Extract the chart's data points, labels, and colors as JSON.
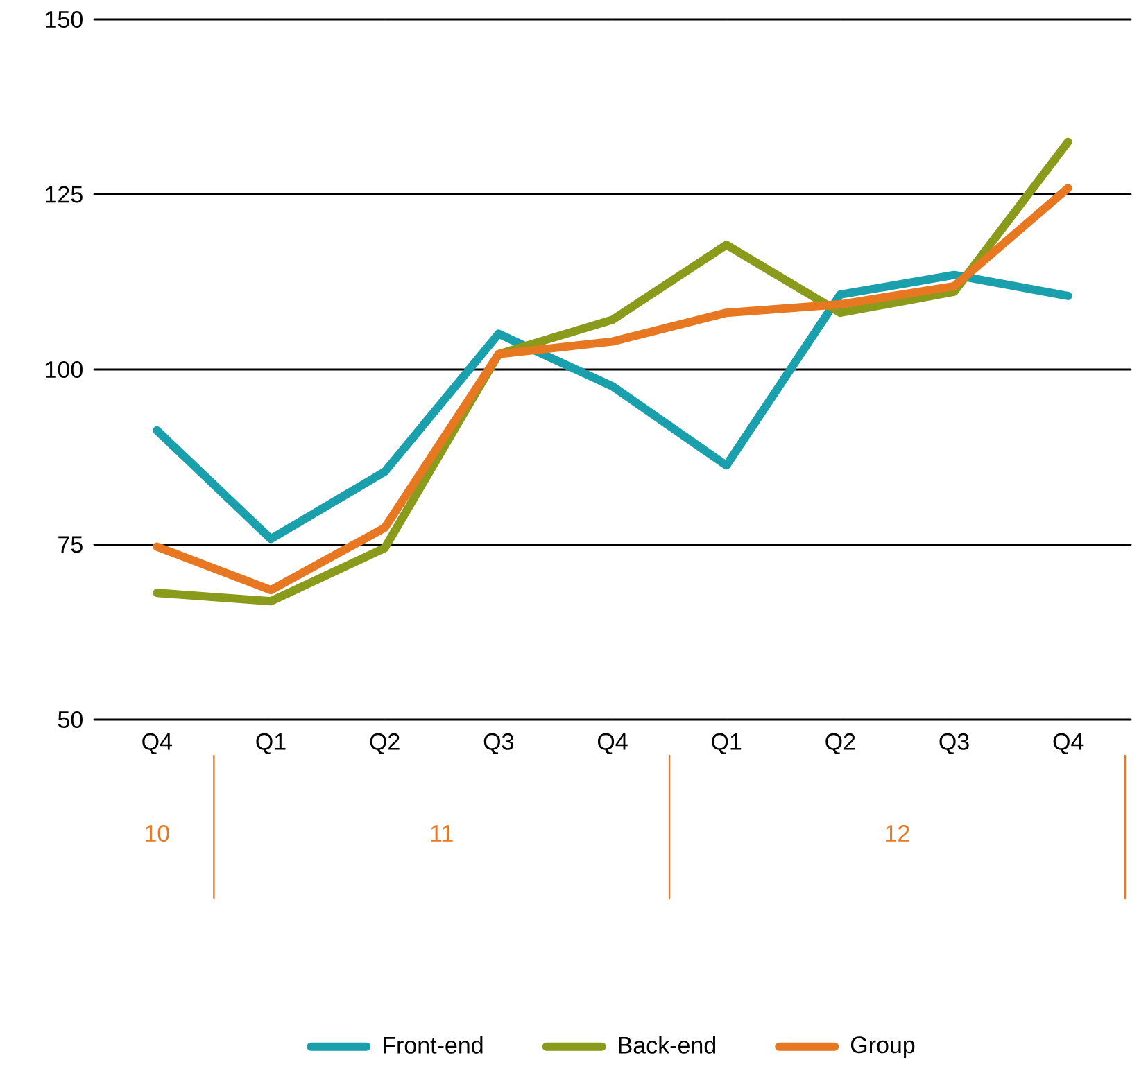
{
  "chart_data": {
    "type": "line",
    "categories": [
      "Q4",
      "Q1",
      "Q2",
      "Q3",
      "Q4",
      "Q1",
      "Q2",
      "Q3",
      "Q4"
    ],
    "series": [
      {
        "name": "Front-end",
        "color": "#1a9fad",
        "values": [
          91.3,
          75.8,
          85.4,
          105.1,
          97.6,
          86.3,
          110.7,
          113.5,
          110.5
        ]
      },
      {
        "name": "Back-end",
        "color": "#8a9a1b",
        "values": [
          68.1,
          66.9,
          74.5,
          102.2,
          107.1,
          117.8,
          108.1,
          111.1,
          132.5
        ]
      },
      {
        "name": "Group",
        "color": "#e87722",
        "values": [
          74.7,
          68.5,
          77.4,
          102.2,
          104.0,
          108.1,
          109.3,
          111.9,
          125.9
        ]
      }
    ],
    "ylim": [
      50,
      150
    ],
    "yticks": [
      50,
      75,
      100,
      125,
      150
    ],
    "grid": "y",
    "legend": "bottom",
    "marker": "none",
    "line_style": "solid",
    "annotations": [
      "10",
      "11",
      "12"
    ]
  }
}
